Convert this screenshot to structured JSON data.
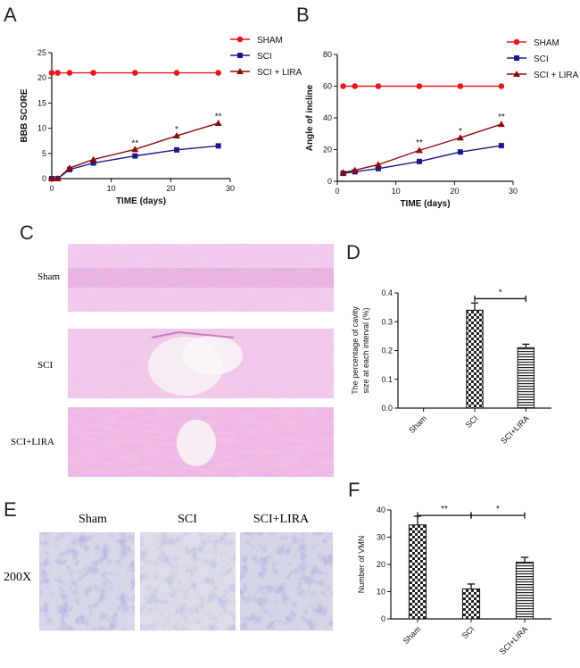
{
  "panels": {
    "a": "A",
    "b": "B",
    "c": "C",
    "d": "D",
    "e": "E",
    "f": "F"
  },
  "chart_data": [
    {
      "id": "A",
      "type": "line",
      "xlabel": "TIME (days)",
      "ylabel": "BBB SCORE",
      "xlim": [
        0,
        30
      ],
      "ylim": [
        0,
        25
      ],
      "xticks": [
        0,
        10,
        20,
        30
      ],
      "yticks": [
        0,
        5,
        10,
        15,
        20,
        25
      ],
      "series": [
        {
          "name": "SHAM",
          "color": "#e31a1c",
          "marker": "circle",
          "x": [
            0,
            1,
            3,
            7,
            14,
            21,
            28
          ],
          "y": [
            21,
            21,
            21,
            21,
            21,
            21,
            21
          ]
        },
        {
          "name": "SCI",
          "color": "#1a1a8c",
          "marker": "square",
          "x": [
            0,
            1,
            3,
            7,
            14,
            21,
            28
          ],
          "y": [
            0,
            0,
            1.8,
            3.1,
            4.5,
            5.7,
            6.5
          ]
        },
        {
          "name": "SCI + LIRA",
          "color": "#8b0a0a",
          "marker": "triangle",
          "x": [
            0,
            1,
            3,
            7,
            14,
            21,
            28
          ],
          "y": [
            0,
            0,
            2.1,
            3.8,
            5.8,
            8.5,
            11
          ]
        }
      ],
      "annotations": [
        {
          "x": 14,
          "y": 6.5,
          "text": "**"
        },
        {
          "x": 21,
          "y": 9.2,
          "text": "*"
        },
        {
          "x": 28,
          "y": 11.8,
          "text": "**"
        }
      ]
    },
    {
      "id": "B",
      "type": "line",
      "xlabel": "TIME (days)",
      "ylabel": "Angle of incline",
      "xlim": [
        0,
        30
      ],
      "ylim": [
        0,
        80
      ],
      "xticks": [
        0,
        10,
        20,
        30
      ],
      "yticks": [
        0,
        20,
        40,
        60,
        80
      ],
      "series": [
        {
          "name": "SHAM",
          "color": "#e31a1c",
          "marker": "circle",
          "x": [
            1,
            3,
            7,
            14,
            21,
            28
          ],
          "y": [
            60,
            60,
            60,
            60,
            60,
            60
          ]
        },
        {
          "name": "SCI",
          "color": "#1a1a8c",
          "marker": "square",
          "x": [
            1,
            3,
            7,
            14,
            21,
            28
          ],
          "y": [
            5,
            6,
            8,
            12.5,
            18.5,
            22.5
          ]
        },
        {
          "name": "SCI + LIRA",
          "color": "#8b0a0a",
          "marker": "triangle",
          "x": [
            1,
            3,
            7,
            14,
            21,
            28
          ],
          "y": [
            5.5,
            7,
            10.5,
            19.5,
            27.5,
            36
          ]
        }
      ],
      "annotations": [
        {
          "x": 14,
          "y": 22.5,
          "text": "**"
        },
        {
          "x": 21,
          "y": 30,
          "text": "*"
        },
        {
          "x": 28,
          "y": 39,
          "text": "**"
        }
      ]
    },
    {
      "id": "D",
      "type": "bar",
      "ylabel": "The percentage of cavity size at each interval (%)",
      "categories": [
        "Sham",
        "SCI",
        "SCI+LIRA"
      ],
      "values": [
        0,
        0.34,
        0.21
      ],
      "errors": [
        0,
        0.025,
        0.012
      ],
      "ylim": [
        0,
        0.4
      ],
      "yticks": [
        0.0,
        0.1,
        0.2,
        0.3,
        0.4
      ],
      "patterns": [
        "none",
        "checker",
        "hlines"
      ],
      "significance": [
        {
          "from": 1,
          "to": 2,
          "text": "*"
        }
      ]
    },
    {
      "id": "F",
      "type": "bar",
      "ylabel": "Number of VMN",
      "categories": [
        "Sham",
        "SCI",
        "SCI+LIRA"
      ],
      "values": [
        34.5,
        11,
        20.8
      ],
      "errors": [
        3.2,
        1.8,
        1.8
      ],
      "ylim": [
        0,
        40
      ],
      "yticks": [
        0,
        10,
        20,
        30,
        40
      ],
      "patterns": [
        "checker",
        "checker",
        "hlines"
      ],
      "significance": [
        {
          "from": 0,
          "to": 1,
          "text": "**"
        },
        {
          "from": 1,
          "to": 2,
          "text": "*"
        }
      ]
    }
  ],
  "histology_c": {
    "rows": [
      "Sham",
      "SCI",
      "SCI+LIRA"
    ]
  },
  "histology_e": {
    "columns": [
      "Sham",
      "SCI",
      "SCI+LIRA"
    ],
    "magnification": "200X"
  }
}
